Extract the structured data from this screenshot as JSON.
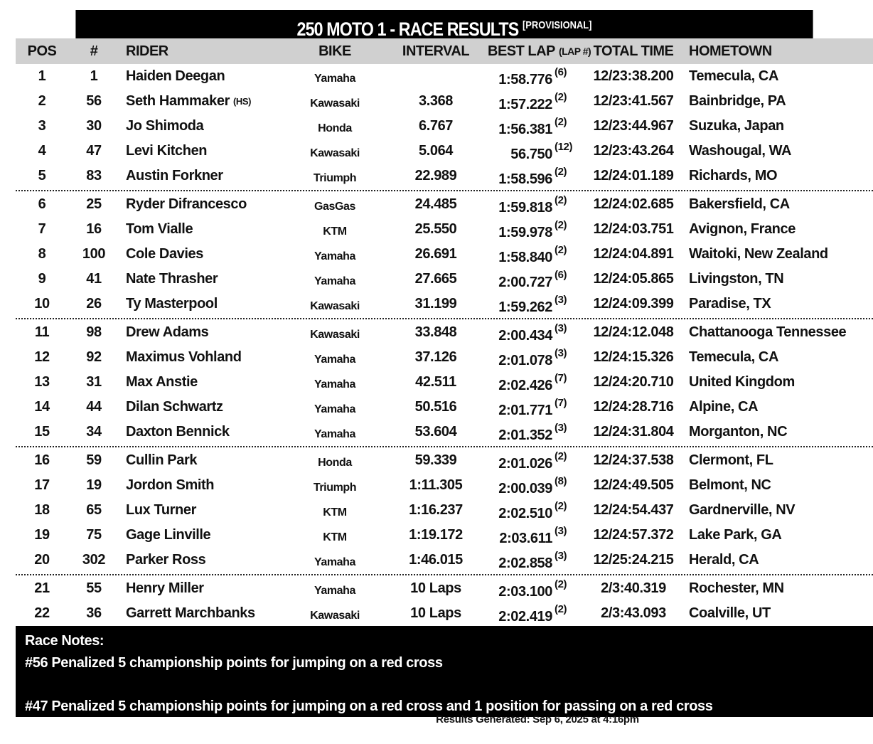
{
  "title": "250 MOTO 1 - RACE RESULTS",
  "title_tag": "[PROVISIONAL]",
  "headers": {
    "pos": "POS",
    "num": "#",
    "rider": "RIDER",
    "bike": "BIKE",
    "interval": "INTERVAL",
    "best_lap": "BEST LAP",
    "lap_num": "(LAP #)",
    "total_time": "TOTAL TIME",
    "hometown": "HOMETOWN"
  },
  "groups": [
    [
      {
        "pos": "1",
        "num": "1",
        "rider": "Haiden Deegan",
        "tag": "",
        "bike": "Yamaha",
        "interval": "",
        "best_lap": "1:58.776",
        "lap": "(6)",
        "total": "12/23:38.200",
        "home": "Temecula, CA"
      },
      {
        "pos": "2",
        "num": "56",
        "rider": "Seth Hammaker",
        "tag": "(HS)",
        "bike": "Kawasaki",
        "interval": "3.368",
        "best_lap": "1:57.222",
        "lap": "(2)",
        "total": "12/23:41.567",
        "home": "Bainbridge, PA"
      },
      {
        "pos": "3",
        "num": "30",
        "rider": "Jo Shimoda",
        "tag": "",
        "bike": "Honda",
        "interval": "6.767",
        "best_lap": "1:56.381",
        "lap": "(2)",
        "total": "12/23:44.967",
        "home": "Suzuka, Japan"
      },
      {
        "pos": "4",
        "num": "47",
        "rider": "Levi Kitchen",
        "tag": "",
        "bike": "Kawasaki",
        "interval": "5.064",
        "best_lap": "56.750",
        "lap": "(12)",
        "total": "12/23:43.264",
        "home": "Washougal, WA"
      },
      {
        "pos": "5",
        "num": "83",
        "rider": "Austin Forkner",
        "tag": "",
        "bike": "Triumph",
        "interval": "22.989",
        "best_lap": "1:58.596",
        "lap": "(2)",
        "total": "12/24:01.189",
        "home": "Richards, MO"
      }
    ],
    [
      {
        "pos": "6",
        "num": "25",
        "rider": "Ryder Difrancesco",
        "tag": "",
        "bike": "GasGas",
        "interval": "24.485",
        "best_lap": "1:59.818",
        "lap": "(2)",
        "total": "12/24:02.685",
        "home": "Bakersfield, CA"
      },
      {
        "pos": "7",
        "num": "16",
        "rider": "Tom Vialle",
        "tag": "",
        "bike": "KTM",
        "interval": "25.550",
        "best_lap": "1:59.978",
        "lap": "(2)",
        "total": "12/24:03.751",
        "home": "Avignon, France"
      },
      {
        "pos": "8",
        "num": "100",
        "rider": "Cole Davies",
        "tag": "",
        "bike": "Yamaha",
        "interval": "26.691",
        "best_lap": "1:58.840",
        "lap": "(2)",
        "total": "12/24:04.891",
        "home": "Waitoki, New Zealand"
      },
      {
        "pos": "9",
        "num": "41",
        "rider": "Nate Thrasher",
        "tag": "",
        "bike": "Yamaha",
        "interval": "27.665",
        "best_lap": "2:00.727",
        "lap": "(6)",
        "total": "12/24:05.865",
        "home": "Livingston, TN"
      },
      {
        "pos": "10",
        "num": "26",
        "rider": "Ty Masterpool",
        "tag": "",
        "bike": "Kawasaki",
        "interval": "31.199",
        "best_lap": "1:59.262",
        "lap": "(3)",
        "total": "12/24:09.399",
        "home": "Paradise, TX"
      }
    ],
    [
      {
        "pos": "11",
        "num": "98",
        "rider": "Drew Adams",
        "tag": "",
        "bike": "Kawasaki",
        "interval": "33.848",
        "best_lap": "2:00.434",
        "lap": "(3)",
        "total": "12/24:12.048",
        "home": "Chattanooga Tennessee"
      },
      {
        "pos": "12",
        "num": "92",
        "rider": "Maximus Vohland",
        "tag": "",
        "bike": "Yamaha",
        "interval": "37.126",
        "best_lap": "2:01.078",
        "lap": "(3)",
        "total": "12/24:15.326",
        "home": "Temecula, CA"
      },
      {
        "pos": "13",
        "num": "31",
        "rider": "Max Anstie",
        "tag": "",
        "bike": "Yamaha",
        "interval": "42.511",
        "best_lap": "2:02.426",
        "lap": "(7)",
        "total": "12/24:20.710",
        "home": "United Kingdom"
      },
      {
        "pos": "14",
        "num": "44",
        "rider": "Dilan Schwartz",
        "tag": "",
        "bike": "Yamaha",
        "interval": "50.516",
        "best_lap": "2:01.771",
        "lap": "(7)",
        "total": "12/24:28.716",
        "home": "Alpine, CA"
      },
      {
        "pos": "15",
        "num": "34",
        "rider": "Daxton Bennick",
        "tag": "",
        "bike": "Yamaha",
        "interval": "53.604",
        "best_lap": "2:01.352",
        "lap": "(3)",
        "total": "12/24:31.804",
        "home": "Morganton, NC"
      }
    ],
    [
      {
        "pos": "16",
        "num": "59",
        "rider": "Cullin Park",
        "tag": "",
        "bike": "Honda",
        "interval": "59.339",
        "best_lap": "2:01.026",
        "lap": "(2)",
        "total": "12/24:37.538",
        "home": "Clermont, FL"
      },
      {
        "pos": "17",
        "num": "19",
        "rider": "Jordon Smith",
        "tag": "",
        "bike": "Triumph",
        "interval": "1:11.305",
        "best_lap": "2:00.039",
        "lap": "(8)",
        "total": "12/24:49.505",
        "home": "Belmont, NC"
      },
      {
        "pos": "18",
        "num": "65",
        "rider": "Lux Turner",
        "tag": "",
        "bike": "KTM",
        "interval": "1:16.237",
        "best_lap": "2:02.510",
        "lap": "(2)",
        "total": "12/24:54.437",
        "home": "Gardnerville, NV"
      },
      {
        "pos": "19",
        "num": "75",
        "rider": "Gage Linville",
        "tag": "",
        "bike": "KTM",
        "interval": "1:19.172",
        "best_lap": "2:03.611",
        "lap": "(3)",
        "total": "12/24:57.372",
        "home": "Lake Park, GA"
      },
      {
        "pos": "20",
        "num": "302",
        "rider": "Parker Ross",
        "tag": "",
        "bike": "Yamaha",
        "interval": "1:46.015",
        "best_lap": "2:02.858",
        "lap": "(3)",
        "total": "12/25:24.215",
        "home": "Herald, CA"
      }
    ],
    [
      {
        "pos": "21",
        "num": "55",
        "rider": "Henry Miller",
        "tag": "",
        "bike": "Yamaha",
        "interval": "10 Laps",
        "best_lap": "2:03.100",
        "lap": "(2)",
        "total": "2/3:40.319",
        "home": "Rochester, MN"
      },
      {
        "pos": "22",
        "num": "36",
        "rider": "Garrett Marchbanks",
        "tag": "",
        "bike": "Kawasaki",
        "interval": "10 Laps",
        "best_lap": "2:02.419",
        "lap": "(2)",
        "total": "2/3:43.093",
        "home": "Coalville, UT"
      }
    ]
  ],
  "notes": {
    "heading": "Race Notes:",
    "items": [
      "#56 Penalized 5 championship points for jumping on a red cross",
      "",
      "#47 Penalized 5 championship points for jumping on a red cross and 1 position for passing on a red cross"
    ]
  },
  "footer": "Results Generated: Sep 6, 2025 at 4:16pm"
}
